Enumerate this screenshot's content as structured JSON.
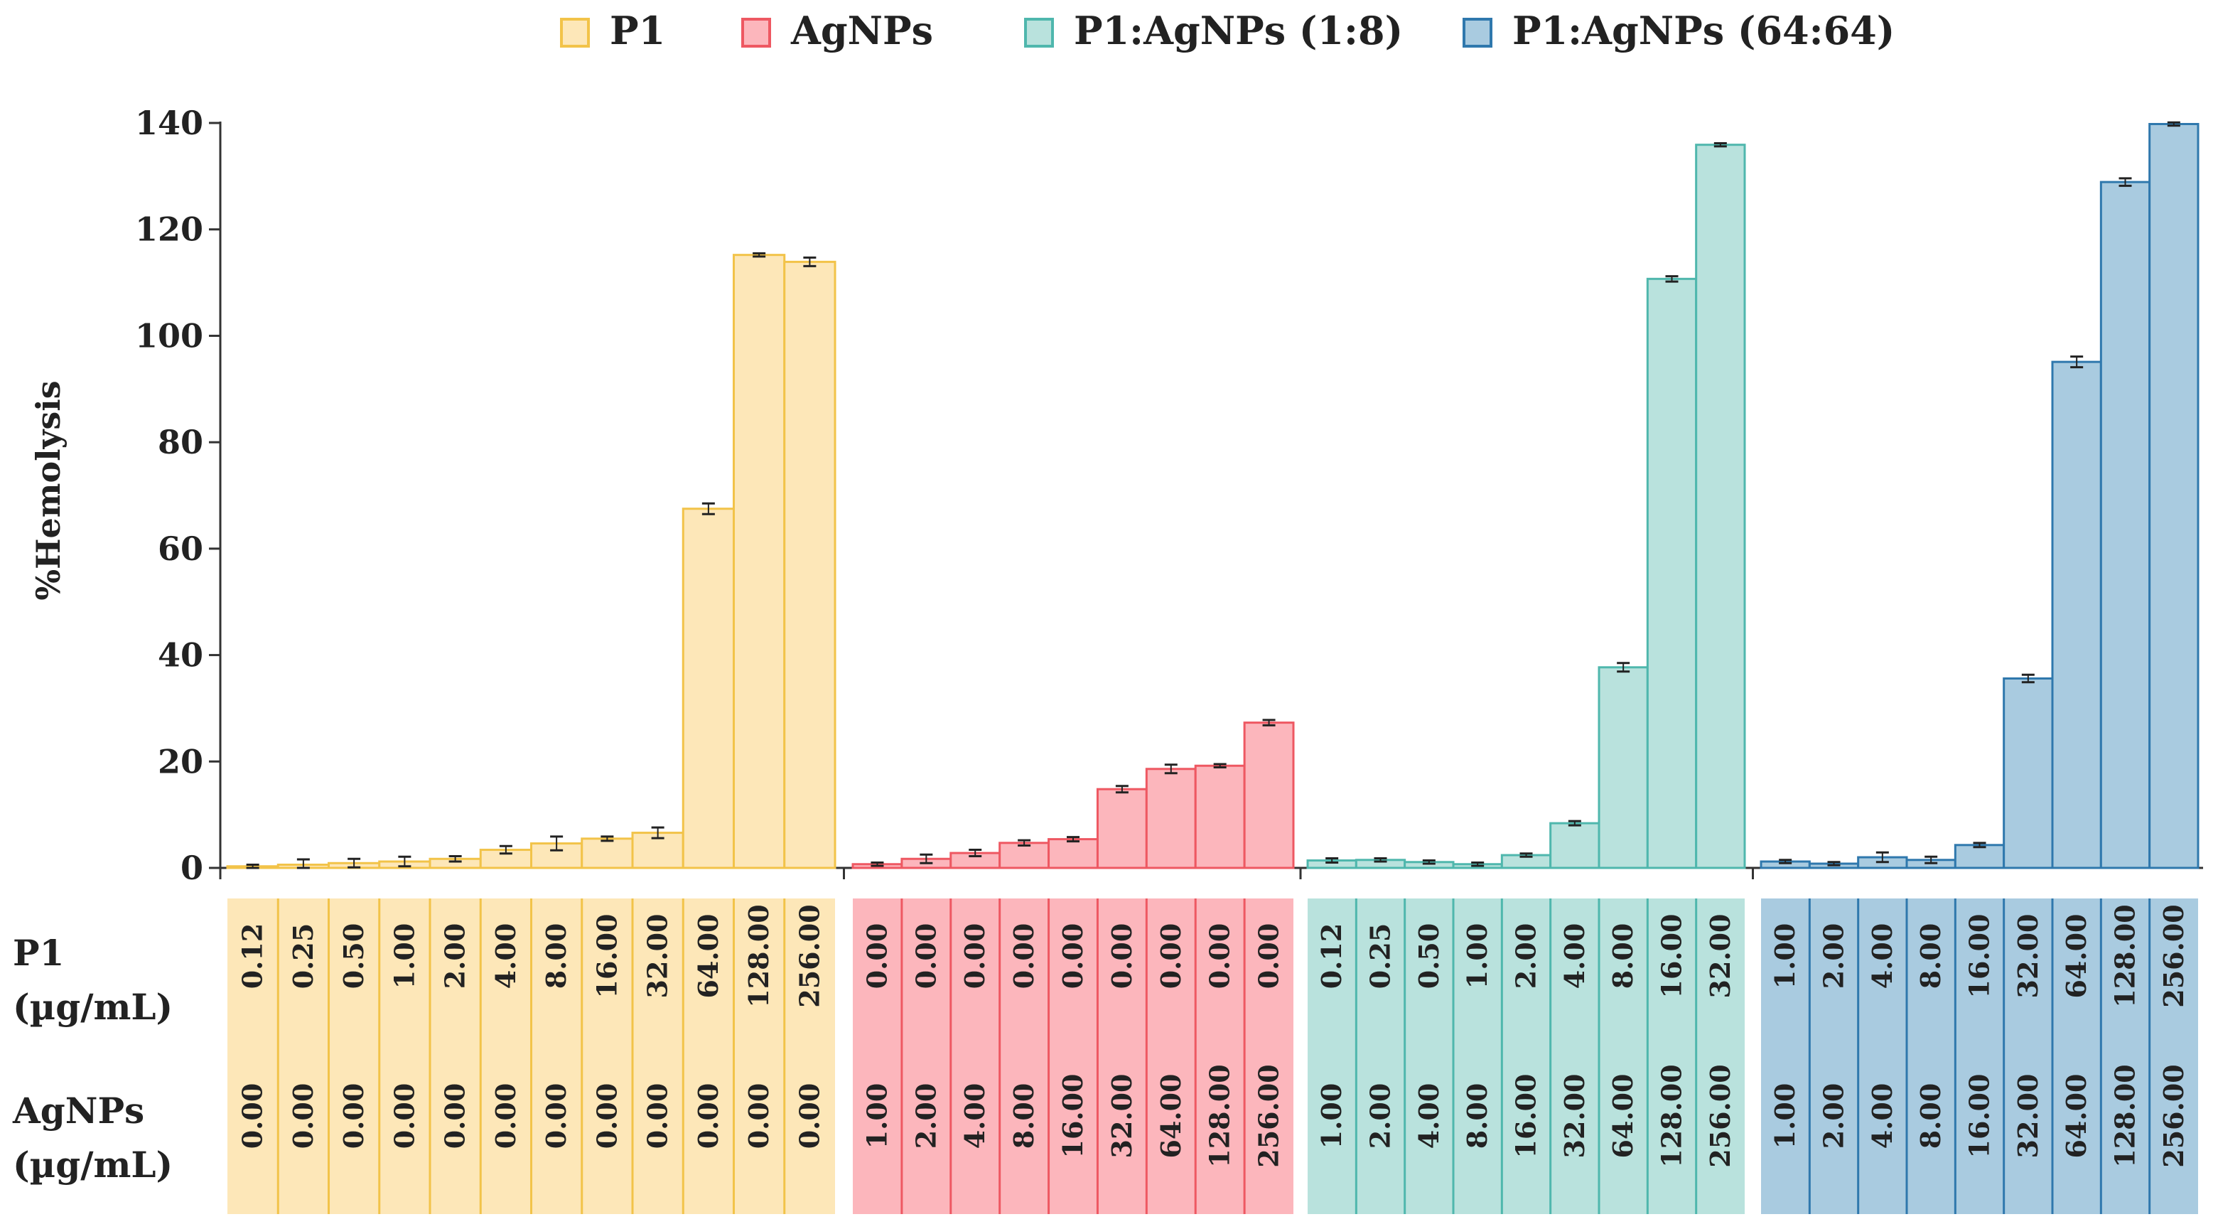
{
  "chart_data": {
    "type": "bar",
    "ylabel": "%Hemolysis",
    "ylim": [
      0,
      140
    ],
    "yticks": [
      0,
      20,
      40,
      60,
      80,
      100,
      120,
      140
    ],
    "legend_position": "top",
    "row_labels": {
      "p1": [
        "P1",
        "(µg/mL)"
      ],
      "ag": [
        "AgNPs",
        "(µg/mL)"
      ]
    },
    "groups": [
      {
        "name": "P1",
        "fill": "#fde7b8",
        "stroke": "#f2c349",
        "p1": [
          "0.12",
          "0.25",
          "0.50",
          "1.00",
          "2.00",
          "4.00",
          "8.00",
          "16.00",
          "32.00",
          "64.00",
          "128.00",
          "256.00"
        ],
        "ag": [
          "0.00",
          "0.00",
          "0.00",
          "0.00",
          "0.00",
          "0.00",
          "0.00",
          "0.00",
          "0.00",
          "0.00",
          "0.00",
          "0.00"
        ],
        "values": [
          0.3,
          0.6,
          0.9,
          1.2,
          1.7,
          3.4,
          4.6,
          5.5,
          6.6,
          67.5,
          115.2,
          113.9
        ],
        "errors": [
          0.3,
          1.0,
          0.8,
          0.9,
          0.5,
          0.7,
          1.3,
          0.4,
          1.0,
          1.0,
          0.3,
          0.8
        ]
      },
      {
        "name": "AgNPs",
        "fill": "#fcb6bc",
        "stroke": "#ee5862",
        "p1": [
          "0.00",
          "0.00",
          "0.00",
          "0.00",
          "0.00",
          "0.00",
          "0.00",
          "0.00",
          "0.00"
        ],
        "ag": [
          "1.00",
          "2.00",
          "4.00",
          "8.00",
          "16.00",
          "32.00",
          "64.00",
          "128.00",
          "256.00"
        ],
        "values": [
          0.7,
          1.7,
          2.8,
          4.7,
          5.4,
          14.8,
          18.6,
          19.2,
          27.3
        ],
        "errors": [
          0.3,
          0.8,
          0.6,
          0.5,
          0.4,
          0.6,
          0.8,
          0.3,
          0.5
        ]
      },
      {
        "name": "P1:AgNPs (1:8)",
        "fill": "#b9e2dd",
        "stroke": "#4fb7ad",
        "p1": [
          "0.12",
          "0.25",
          "0.50",
          "1.00",
          "2.00",
          "4.00",
          "8.00",
          "16.00",
          "32.00"
        ],
        "ag": [
          "1.00",
          "2.00",
          "4.00",
          "8.00",
          "16.00",
          "32.00",
          "64.00",
          "128.00",
          "256.00"
        ],
        "values": [
          1.4,
          1.5,
          1.1,
          0.7,
          2.4,
          8.4,
          37.7,
          110.7,
          135.9
        ],
        "errors": [
          0.4,
          0.3,
          0.3,
          0.3,
          0.3,
          0.4,
          0.8,
          0.5,
          0.3
        ]
      },
      {
        "name": "P1:AgNPs (64:64)",
        "fill": "#a9cbe0",
        "stroke": "#2f78ad",
        "p1": [
          "1.00",
          "2.00",
          "4.00",
          "8.00",
          "16.00",
          "32.00",
          "64.00",
          "128.00",
          "256.00"
        ],
        "ag": [
          "1.00",
          "2.00",
          "4.00",
          "8.00",
          "16.00",
          "32.00",
          "64.00",
          "128.00",
          "256.00"
        ],
        "values": [
          1.2,
          0.8,
          2.0,
          1.5,
          4.3,
          35.6,
          95.1,
          128.9,
          139.8
        ],
        "errors": [
          0.3,
          0.3,
          0.9,
          0.6,
          0.4,
          0.7,
          1.0,
          0.7,
          0.3
        ]
      }
    ]
  }
}
